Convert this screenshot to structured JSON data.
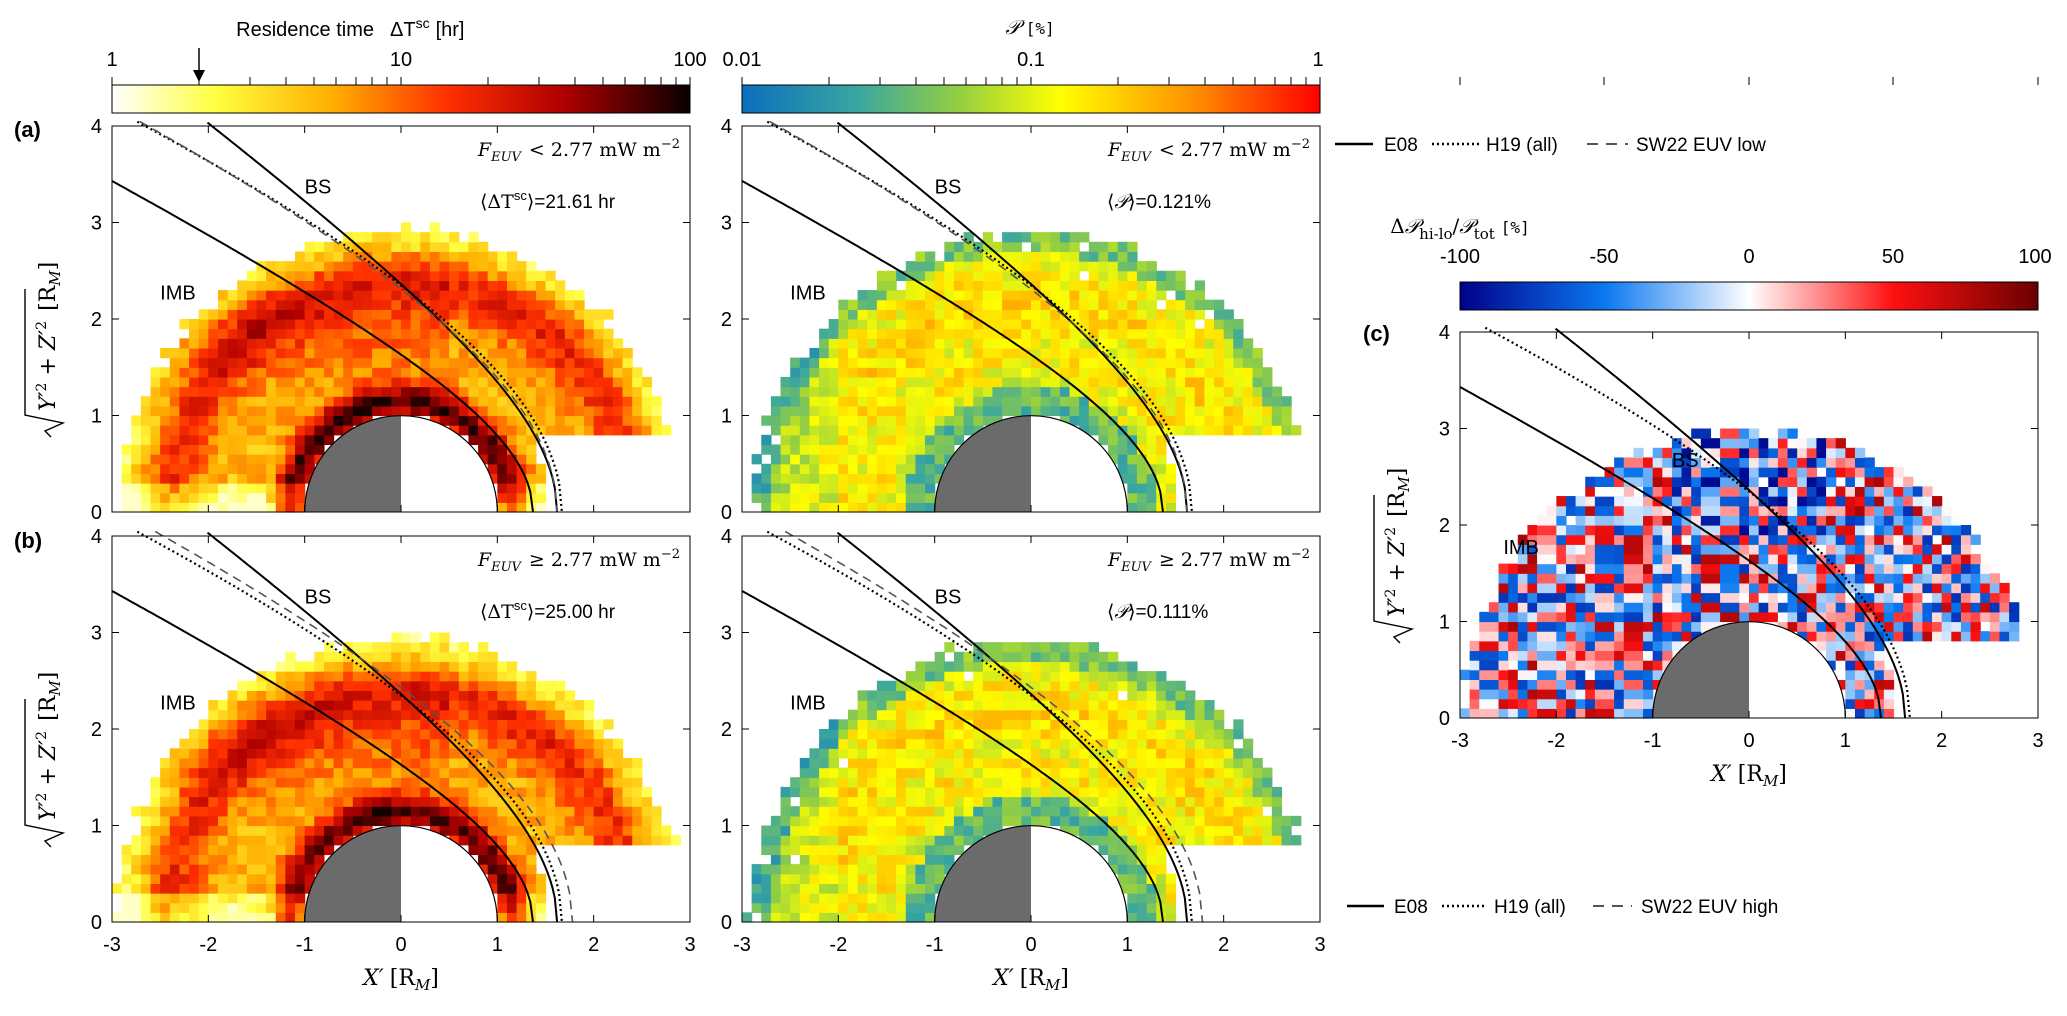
{
  "chart_data": [
    {
      "type": "heatmap",
      "panel_label": "(a)",
      "quantity": "residence_time",
      "condition_label": "F_EUV < 2.77 mW m^-2",
      "condition": {
        "var": "F",
        "sub": "EUV",
        "op": "<",
        "value": "2.77",
        "unit": "mW m",
        "exp": "−2"
      },
      "mean_label": "⟨ΔT^sc⟩=21.61 hr",
      "mean": {
        "pre": "⟨ΔT",
        "sup": "sc",
        "post": "⟩=21.61 hr"
      },
      "boundaries": [
        "BS",
        "IMB"
      ],
      "xlim": [
        -3,
        3
      ],
      "ylim": [
        0,
        4
      ],
      "xticks": [
        -3,
        -2,
        -1,
        0,
        1,
        2,
        3
      ],
      "yticks": [
        0,
        1,
        2,
        3,
        4
      ],
      "ylabel": "√(Y′² + Z′²) [R_M]",
      "xlabel": ""
    },
    {
      "type": "heatmap",
      "panel_label": "",
      "quantity": "probability",
      "condition_label": "F_EUV < 2.77 mW m^-2",
      "condition": {
        "var": "F",
        "sub": "EUV",
        "op": "<",
        "value": "2.77",
        "unit": "mW m",
        "exp": "−2"
      },
      "mean_label": "⟨P⟩=0.121%",
      "mean": {
        "pre": "⟨",
        "sym": "𝒫",
        "post": "⟩=0.121%"
      },
      "boundaries": [
        "BS",
        "IMB"
      ],
      "xlim": [
        -3,
        3
      ],
      "ylim": [
        0,
        4
      ],
      "xticks": [
        -3,
        -2,
        -1,
        0,
        1,
        2,
        3
      ],
      "yticks": [
        0,
        1,
        2,
        3,
        4
      ]
    },
    {
      "type": "heatmap",
      "panel_label": "(b)",
      "quantity": "residence_time",
      "condition_label": "F_EUV ≥ 2.77 mW m^-2",
      "condition": {
        "var": "F",
        "sub": "EUV",
        "op": "≥",
        "value": "2.77",
        "unit": "mW m",
        "exp": "−2"
      },
      "mean_label": "⟨ΔT^sc⟩=25.00 hr",
      "mean": {
        "pre": "⟨ΔT",
        "sup": "sc",
        "post": "⟩=25.00 hr"
      },
      "boundaries": [
        "BS",
        "IMB"
      ],
      "xlim": [
        -3,
        3
      ],
      "ylim": [
        0,
        4
      ],
      "xticks": [
        -3,
        -2,
        -1,
        0,
        1,
        2,
        3
      ],
      "yticks": [
        0,
        1,
        2,
        3,
        4
      ],
      "xlabel": "X′ [R_M]",
      "ylabel": "√(Y′² + Z′²) [R_M]"
    },
    {
      "type": "heatmap",
      "panel_label": "",
      "quantity": "probability",
      "condition_label": "F_EUV ≥ 2.77 mW m^-2",
      "condition": {
        "var": "F",
        "sub": "EUV",
        "op": "≥",
        "value": "2.77",
        "unit": "mW m",
        "exp": "−2"
      },
      "mean_label": "⟨P⟩=0.111%",
      "mean": {
        "pre": "⟨",
        "sym": "𝒫",
        "post": "⟩=0.111%"
      },
      "boundaries": [
        "BS",
        "IMB"
      ],
      "xlim": [
        -3,
        3
      ],
      "ylim": [
        0,
        4
      ],
      "xticks": [
        -3,
        -2,
        -1,
        0,
        1,
        2,
        3
      ],
      "yticks": [
        0,
        1,
        2,
        3,
        4
      ],
      "xlabel": "X′ [R_M]"
    },
    {
      "type": "heatmap",
      "panel_label": "(c)",
      "quantity": "relative_difference",
      "boundaries": [
        "BS",
        "IMB"
      ],
      "xlim": [
        -3,
        3
      ],
      "ylim": [
        0,
        4
      ],
      "xticks": [
        -3,
        -2,
        -1,
        0,
        1,
        2,
        3
      ],
      "yticks": [
        0,
        1,
        2,
        3,
        4
      ],
      "xlabel": "X′ [R_M]",
      "ylabel": "√(Y′² + Z′²) [R_M]"
    }
  ],
  "colorbars": {
    "residence": {
      "title": "Residence time   ΔT^sc [hr]",
      "title_main": "Residence time",
      "title_sym": "ΔT",
      "title_sup": "sc",
      "title_unit": "[hr]",
      "scale": "log",
      "ticks": [
        "1",
        "10",
        "100"
      ],
      "range": [
        1,
        100
      ],
      "arrow_at": 2.0
    },
    "probability": {
      "title": "P [%]",
      "title_sym": "𝒫",
      "title_unit": "[%]",
      "scale": "log",
      "ticks": [
        "0.01",
        "0.1",
        "1"
      ],
      "range": [
        0.01,
        1
      ]
    },
    "difference": {
      "title": "ΔP_hi-lo / P_tot [%]",
      "title_pre": "Δ",
      "title_sym": "𝒫",
      "title_sub1": "hi-lo",
      "title_mid": "/",
      "title_sub2": "tot",
      "title_unit": "[%]",
      "scale": "linear",
      "ticks": [
        "-100",
        "-50",
        "0",
        "50",
        "100"
      ],
      "range": [
        -100,
        100
      ]
    }
  },
  "legends": {
    "low": [
      {
        "key": "E08",
        "style": "solid"
      },
      {
        "key": "H19 (all)",
        "style": "dotted"
      },
      {
        "key": "SW22 EUV low",
        "style": "dashed"
      }
    ],
    "high": [
      {
        "key": "E08",
        "style": "solid"
      },
      {
        "key": "H19 (all)",
        "style": "dotted"
      },
      {
        "key": "SW22 EUV high",
        "style": "dashed"
      }
    ]
  },
  "axis_text": {
    "xlabel_sym": "X′",
    "units": "[R",
    "units_sub": "M",
    "units_close": "]"
  },
  "colors": {
    "planet": "#6b6b6b",
    "boundary": "#000000",
    "sw22": "#555555"
  }
}
